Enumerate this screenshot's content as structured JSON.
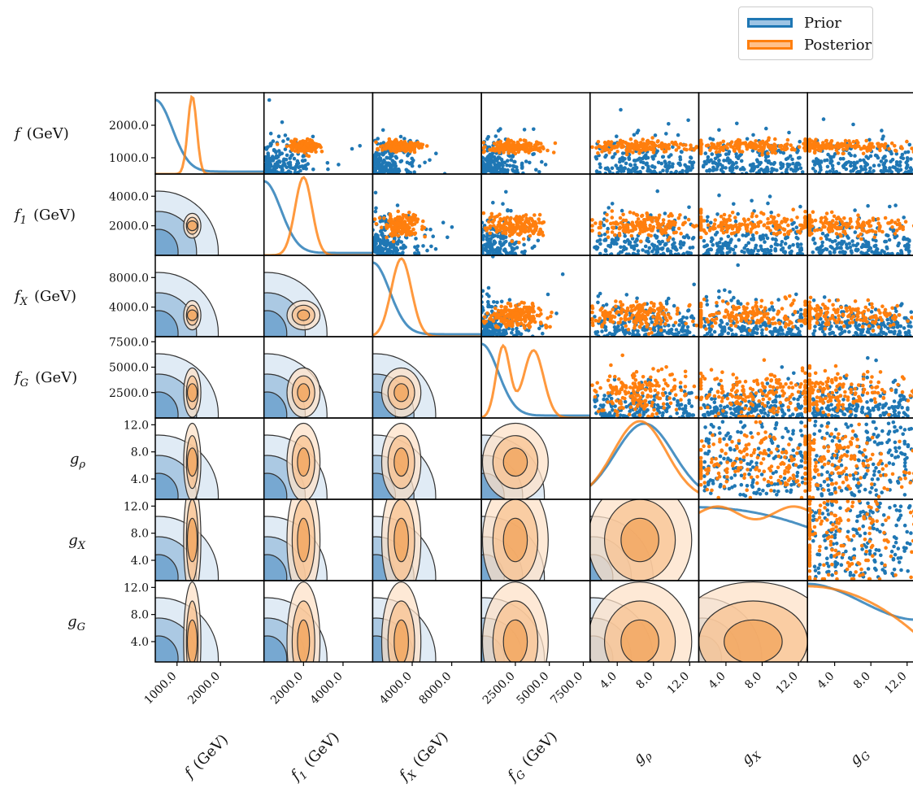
{
  "chart_data": {
    "type": "scatter",
    "title": "",
    "legend": {
      "placement": "top-right",
      "entries": [
        {
          "name": "Prior",
          "color": "#1f77b4"
        },
        {
          "name": "Posterior",
          "color": "#ff7f0e"
        }
      ]
    },
    "colors": {
      "prior": "#1f77b4",
      "posterior": "#ff7f0e"
    },
    "params": [
      {
        "key": "f",
        "base": "f",
        "sub": "",
        "unit": "(GeV)",
        "range": [
          500,
          3000
        ],
        "yticks": [
          1000.0,
          2000.0
        ],
        "xticks": [
          1000.0,
          2000.0
        ],
        "post_mode": 1350,
        "post_sd": 90,
        "prior_shape": "decay"
      },
      {
        "key": "f1",
        "base": "f",
        "sub": "1",
        "unit": "(GeV)",
        "range": [
          0,
          5500
        ],
        "yticks": [
          2000.0,
          4000.0
        ],
        "xticks": [
          2000.0,
          4000.0
        ],
        "post_mode": 2000,
        "post_sd": 380,
        "prior_shape": "decay"
      },
      {
        "key": "fX",
        "base": "f",
        "sub": "X",
        "unit": "(GeV)",
        "range": [
          0,
          11000
        ],
        "yticks": [
          4000.0,
          8000.0
        ],
        "xticks": [
          4000.0,
          8000.0
        ],
        "post_mode": 2900,
        "post_sd": 900,
        "prior_shape": "decay"
      },
      {
        "key": "fG",
        "base": "f",
        "sub": "G",
        "unit": "(GeV)",
        "range": [
          0,
          8000
        ],
        "yticks": [
          2500.0,
          5000.0,
          7500.0
        ],
        "xticks": [
          2500.0,
          5000.0,
          7500.0
        ],
        "post_mode": 2500,
        "post_sd": 1100,
        "prior_shape": "decay"
      },
      {
        "key": "grho",
        "base": "g",
        "sub": "ρ",
        "unit": "",
        "range": [
          1,
          13
        ],
        "yticks": [
          4.0,
          8.0,
          12.0
        ],
        "xticks": [
          4.0,
          8.0,
          12.0
        ],
        "post_mode": 6.5,
        "post_sd": 2.6,
        "prior_shape": "hump"
      },
      {
        "key": "gX",
        "base": "g",
        "sub": "X",
        "unit": "",
        "range": [
          1,
          13
        ],
        "yticks": [
          4.0,
          8.0,
          12.0
        ],
        "xticks": [
          4.0,
          8.0,
          12.0
        ],
        "post_mode": 7,
        "post_sd": 4,
        "prior_shape": "flat"
      },
      {
        "key": "gG",
        "base": "g",
        "sub": "G",
        "unit": "",
        "range": [
          1,
          13
        ],
        "yticks": [
          4.0,
          8.0,
          12.0
        ],
        "xticks": [
          4.0,
          8.0,
          12.0
        ],
        "post_mode": 4,
        "post_sd": 4,
        "prior_shape": "flat"
      }
    ]
  }
}
